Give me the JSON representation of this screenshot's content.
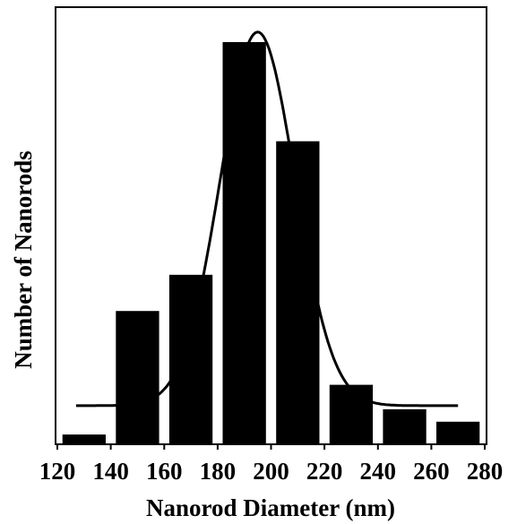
{
  "chart_data": {
    "type": "bar",
    "title": "",
    "xlabel": "Nanorod Diameter (nm)",
    "ylabel": "Number of Nanorods",
    "bin_edges": [
      120,
      140,
      160,
      180,
      200,
      220,
      240,
      260,
      280
    ],
    "x_tick_labels": [
      "120",
      "140",
      "160",
      "180",
      "200",
      "220",
      "240",
      "260",
      "280"
    ],
    "bars": [
      {
        "bin_start": 120,
        "bin_end": 140,
        "value": 0.022
      },
      {
        "bin_start": 140,
        "bin_end": 160,
        "value": 0.33
      },
      {
        "bin_start": 160,
        "bin_end": 180,
        "value": 0.42
      },
      {
        "bin_start": 180,
        "bin_end": 200,
        "value": 1.0
      },
      {
        "bin_start": 200,
        "bin_end": 220,
        "value": 0.753
      },
      {
        "bin_start": 220,
        "bin_end": 240,
        "value": 0.146
      },
      {
        "bin_start": 240,
        "bin_end": 260,
        "value": 0.085
      },
      {
        "bin_start": 260,
        "bin_end": 280,
        "value": 0.054
      }
    ],
    "fit_curve": {
      "type": "gaussian",
      "center": 195,
      "sigma": 14,
      "peak": 1.025,
      "baseline": 0.094,
      "x_range": [
        127,
        270
      ]
    },
    "xlim": [
      120,
      280
    ],
    "ylim": [
      0,
      1.1
    ],
    "y_ticks_shown": false,
    "grid": false,
    "bar_color": "#000000",
    "curve_color": "#000000"
  }
}
